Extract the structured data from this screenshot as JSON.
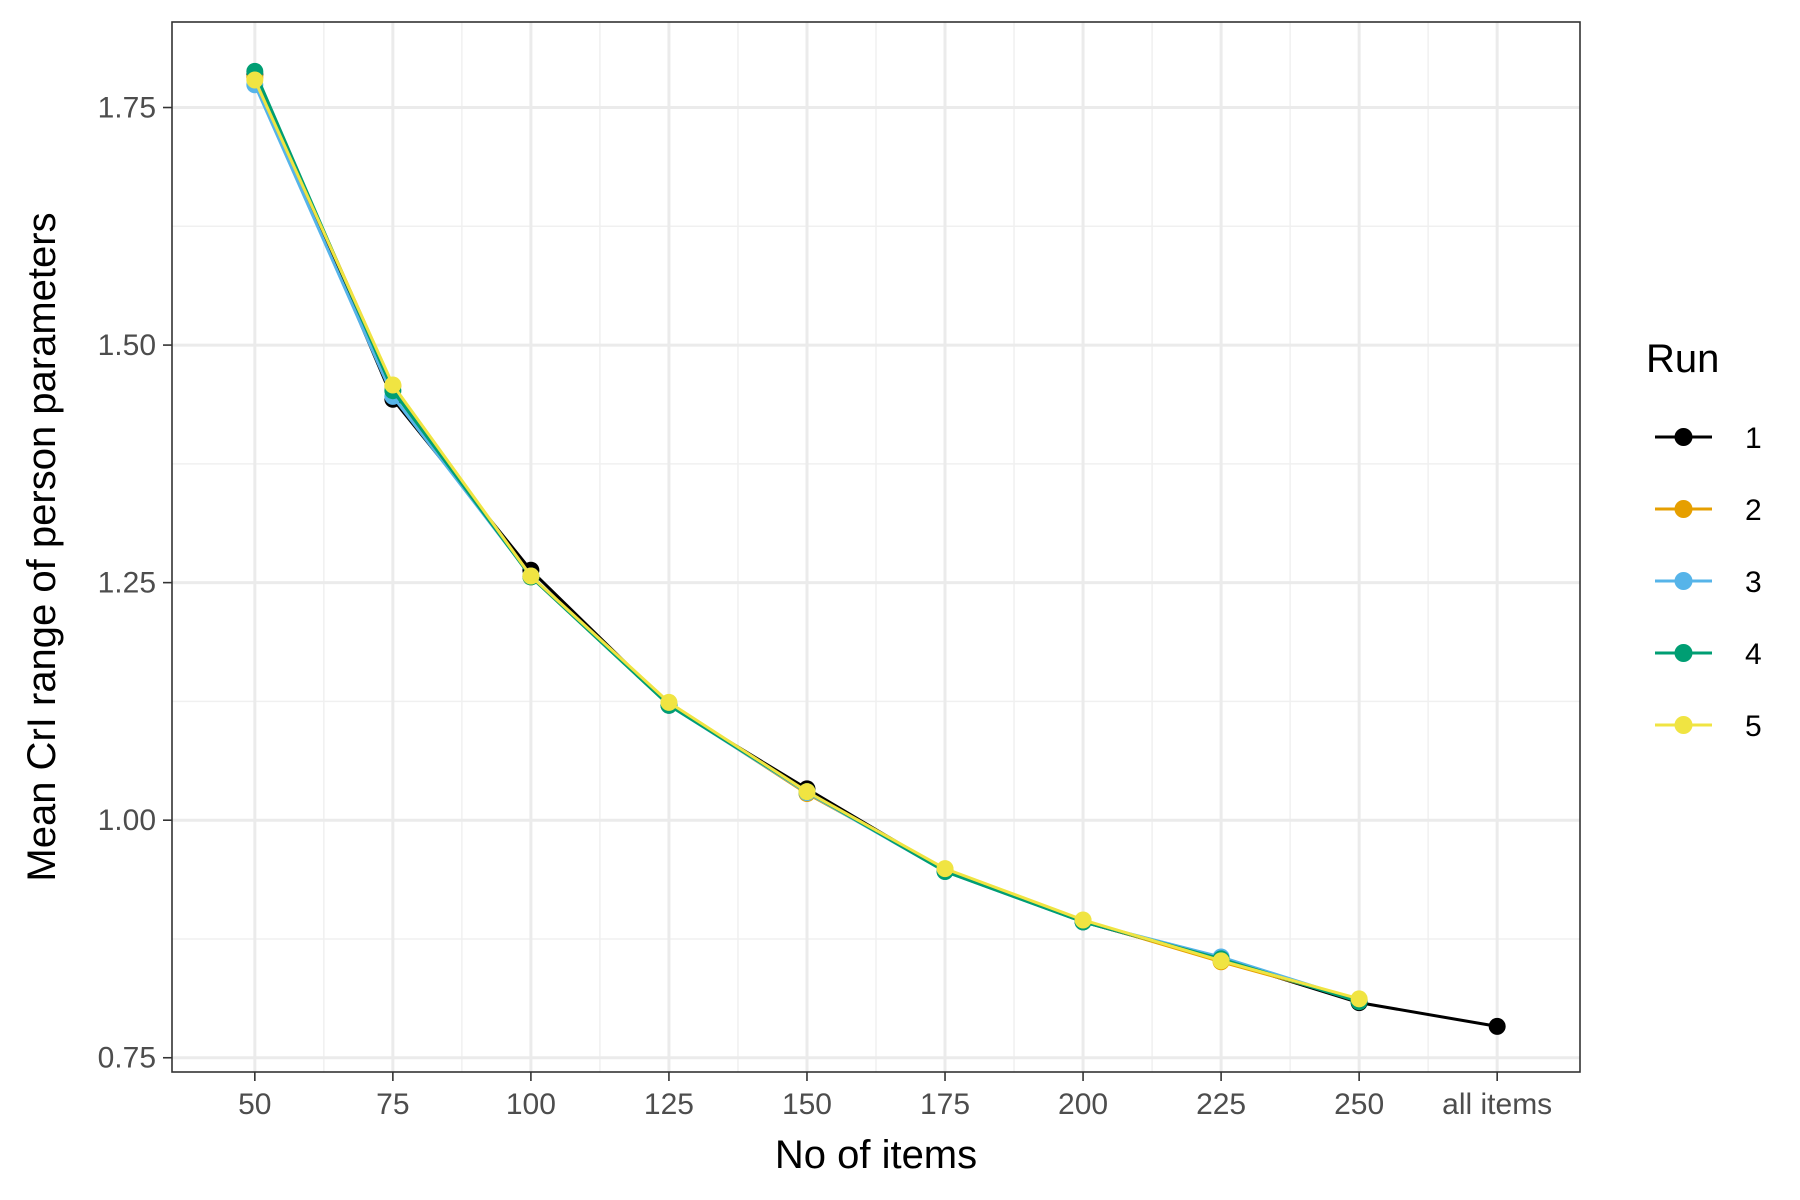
{
  "chart_data": {
    "type": "line",
    "title": "",
    "xlabel": "No of items",
    "ylabel": "Mean CrI range of person parameters",
    "categories": [
      "50",
      "75",
      "100",
      "125",
      "150",
      "175",
      "200",
      "225",
      "250",
      "all items"
    ],
    "ylim": [
      0.735,
      1.84
    ],
    "yticks": [
      0.75,
      1.0,
      1.25,
      1.5,
      1.75
    ],
    "ytick_labels": [
      "0.75",
      "1.00",
      "1.25",
      "1.50",
      "1.75"
    ],
    "grid": true,
    "legend": {
      "title": "Run",
      "position": "right"
    },
    "series": [
      {
        "name": "1",
        "color": "#000000",
        "values": [
          1.785,
          1.443,
          1.263,
          1.121,
          1.033,
          0.947,
          0.893,
          0.853,
          0.808,
          0.783
        ]
      },
      {
        "name": "2",
        "color": "#E69F00",
        "values": [
          1.782,
          1.457,
          1.256,
          1.122,
          1.028,
          0.948,
          0.894,
          0.851,
          0.811,
          null
        ]
      },
      {
        "name": "3",
        "color": "#56B4E9",
        "values": [
          1.774,
          1.446,
          1.257,
          1.121,
          1.029,
          0.946,
          0.893,
          0.856,
          0.81,
          null
        ]
      },
      {
        "name": "4",
        "color": "#009E73",
        "values": [
          1.788,
          1.452,
          1.256,
          1.121,
          1.03,
          0.946,
          0.893,
          0.854,
          0.809,
          null
        ]
      },
      {
        "name": "5",
        "color": "#F0E442",
        "values": [
          1.779,
          1.458,
          1.257,
          1.124,
          1.03,
          0.949,
          0.895,
          0.852,
          0.812,
          null
        ]
      }
    ]
  }
}
